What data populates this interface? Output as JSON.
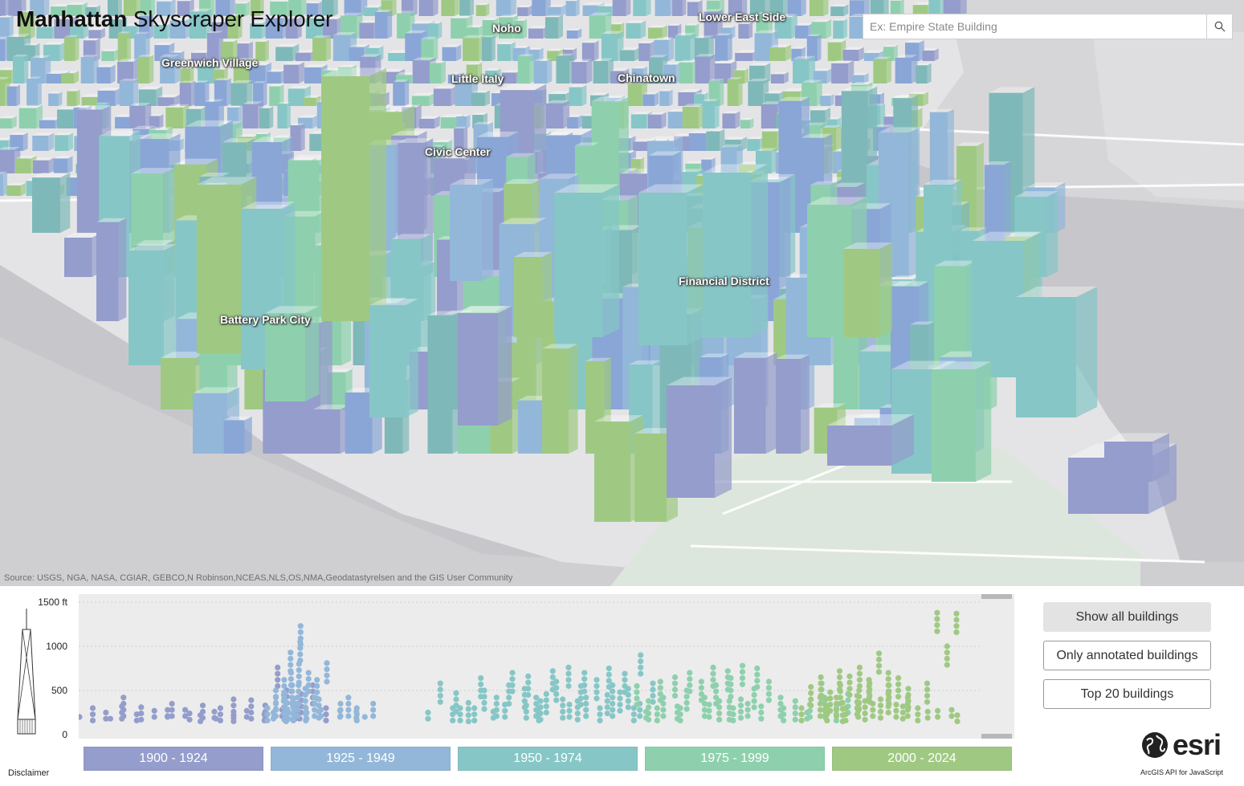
{
  "app": {
    "title_bold": "Manhattan",
    "title_light": " Skyscraper Explorer"
  },
  "search": {
    "placeholder": "Ex: Empire State Building"
  },
  "map": {
    "labels": [
      {
        "id": "noho",
        "text": "Noho"
      },
      {
        "id": "lower-east-side",
        "text": "Lower East Side"
      },
      {
        "id": "greenwich-village",
        "text": "Greenwich Village"
      },
      {
        "id": "little-italy",
        "text": "Little Italy"
      },
      {
        "id": "chinatown",
        "text": "Chinatown"
      },
      {
        "id": "civic-center",
        "text": "Civic Center"
      },
      {
        "id": "financial-district",
        "text": "Financial District"
      },
      {
        "id": "battery-park-city",
        "text": "Battery Park City"
      }
    ],
    "attribution": "Source: USGS, NGA, NASA, CGIAR, GEBCO,N Robinson,NCEAS,NLS,OS,NMA,Geodatastyrelsen and the GIS User Community"
  },
  "chart": {
    "y_axis_labels": [
      "1500 ft",
      "1000",
      "500",
      "0"
    ]
  },
  "chart_data": {
    "type": "scatter",
    "xlabel": "",
    "ylabel": "",
    "ylim": [
      0,
      1500
    ],
    "y_ticks": [
      0,
      500,
      1000,
      1500
    ],
    "y_unit": "ft",
    "series": [
      {
        "name": "1900 - 1924",
        "color": "#949dcb",
        "x_range": [
          1900,
          1924
        ],
        "points": [
          [
            1900,
            200
          ],
          [
            1901,
            300
          ],
          [
            1902,
            250
          ],
          [
            1903,
            180
          ],
          [
            1904,
            420
          ],
          [
            1905,
            230
          ],
          [
            1906,
            310
          ],
          [
            1907,
            270
          ],
          [
            1908,
            200
          ],
          [
            1909,
            350
          ],
          [
            1910,
            280
          ],
          [
            1911,
            240
          ],
          [
            1912,
            330
          ],
          [
            1913,
            180
          ],
          [
            1914,
            300
          ],
          [
            1915,
            220
          ],
          [
            1916,
            270
          ],
          [
            1917,
            390
          ],
          [
            1918,
            230
          ],
          [
            1919,
            760
          ],
          [
            1920,
            280
          ],
          [
            1921,
            320
          ],
          [
            1922,
            250
          ],
          [
            1923,
            560
          ],
          [
            1924,
            300
          ],
          [
            1912,
            220
          ],
          [
            1915,
            400
          ],
          [
            1920,
            500
          ],
          [
            1922,
            460
          ],
          [
            1913,
            260
          ],
          [
            1908,
            280
          ],
          [
            1904,
            320
          ],
          [
            1918,
            330
          ]
        ]
      },
      {
        "name": "1925 - 1949",
        "color": "#93b7d9",
        "x_range": [
          1925,
          1949
        ],
        "points": [
          [
            1925,
            300
          ],
          [
            1926,
            500
          ],
          [
            1927,
            380
          ],
          [
            1928,
            450
          ],
          [
            1929,
            560
          ],
          [
            1930,
            1230
          ],
          [
            1931,
            1050
          ],
          [
            1932,
            700
          ],
          [
            1933,
            620
          ],
          [
            1929,
            930
          ],
          [
            1930,
            800
          ],
          [
            1931,
            560
          ],
          [
            1928,
            360
          ],
          [
            1927,
            620
          ],
          [
            1926,
            250
          ],
          [
            1930,
            420
          ],
          [
            1931,
            300
          ],
          [
            1932,
            520
          ],
          [
            1929,
            380
          ],
          [
            1928,
            700
          ],
          [
            1936,
            810
          ],
          [
            1938,
            350
          ],
          [
            1939,
            270
          ],
          [
            1940,
            420
          ],
          [
            1941,
            300
          ],
          [
            1942,
            260
          ],
          [
            1943,
            200
          ],
          [
            1944,
            350
          ],
          [
            1935,
            280
          ],
          [
            1934,
            400
          ],
          [
            1931,
            250
          ],
          [
            1932,
            250
          ],
          [
            1933,
            420
          ],
          [
            1930,
            300
          ],
          [
            1926,
            420
          ],
          [
            1925,
            200
          ],
          [
            1929,
            250
          ]
        ]
      },
      {
        "name": "1950 - 1974",
        "color": "#87c6c6",
        "x_range": [
          1950,
          1974
        ],
        "points": [
          [
            1950,
            250
          ],
          [
            1951,
            580
          ],
          [
            1952,
            300
          ],
          [
            1953,
            470
          ],
          [
            1954,
            360
          ],
          [
            1955,
            640
          ],
          [
            1956,
            500
          ],
          [
            1957,
            420
          ],
          [
            1958,
            560
          ],
          [
            1959,
            700
          ],
          [
            1960,
            520
          ],
          [
            1961,
            660
          ],
          [
            1962,
            380
          ],
          [
            1963,
            720
          ],
          [
            1964,
            600
          ],
          [
            1965,
            760
          ],
          [
            1966,
            550
          ],
          [
            1967,
            700
          ],
          [
            1968,
            620
          ],
          [
            1969,
            750
          ],
          [
            1970,
            560
          ],
          [
            1971,
            690
          ],
          [
            1972,
            520
          ],
          [
            1973,
            900
          ],
          [
            1974,
            580
          ],
          [
            1955,
            300
          ],
          [
            1958,
            340
          ],
          [
            1960,
            330
          ],
          [
            1962,
            300
          ],
          [
            1965,
            340
          ],
          [
            1968,
            300
          ],
          [
            1970,
            280
          ],
          [
            1972,
            300
          ],
          [
            1963,
            460
          ],
          [
            1967,
            420
          ],
          [
            1969,
            450
          ],
          [
            1971,
            480
          ],
          [
            1966,
            380
          ],
          [
            1964,
            400
          ],
          [
            1957,
            260
          ],
          [
            1953,
            300
          ],
          [
            1961,
            420
          ],
          [
            1973,
            350
          ]
        ]
      },
      {
        "name": "1975 - 1999",
        "color": "#8ed0ad",
        "x_range": [
          1975,
          1999
        ],
        "points": [
          [
            1975,
            550
          ],
          [
            1976,
            380
          ],
          [
            1977,
            600
          ],
          [
            1978,
            420
          ],
          [
            1979,
            650
          ],
          [
            1980,
            500
          ],
          [
            1981,
            700
          ],
          [
            1982,
            600
          ],
          [
            1983,
            760
          ],
          [
            1984,
            560
          ],
          [
            1985,
            720
          ],
          [
            1986,
            640
          ],
          [
            1987,
            780
          ],
          [
            1988,
            520
          ],
          [
            1989,
            750
          ],
          [
            1990,
            600
          ],
          [
            1991,
            420
          ],
          [
            1992,
            300
          ],
          [
            1993,
            380
          ],
          [
            1994,
            250
          ],
          [
            1995,
            340
          ],
          [
            1996,
            580
          ],
          [
            1997,
            420
          ],
          [
            1998,
            300
          ],
          [
            1999,
            460
          ],
          [
            1980,
            300
          ],
          [
            1983,
            340
          ],
          [
            1985,
            380
          ],
          [
            1987,
            400
          ],
          [
            1989,
            320
          ],
          [
            1982,
            420
          ],
          [
            1986,
            300
          ],
          [
            1984,
            380
          ],
          [
            1988,
            350
          ],
          [
            1977,
            300
          ],
          [
            1979,
            320
          ],
          [
            1976,
            260
          ]
        ]
      },
      {
        "name": "2000 - 2024",
        "color": "#9fc983",
        "x_range": [
          2000,
          2024
        ],
        "points": [
          [
            2000,
            300
          ],
          [
            2001,
            540
          ],
          [
            2002,
            420
          ],
          [
            2003,
            650
          ],
          [
            2004,
            480
          ],
          [
            2005,
            720
          ],
          [
            2006,
            560
          ],
          [
            2007,
            660
          ],
          [
            2008,
            500
          ],
          [
            2009,
            760
          ],
          [
            2010,
            620
          ],
          [
            2011,
            580
          ],
          [
            2012,
            920
          ],
          [
            2013,
            700
          ],
          [
            2014,
            560
          ],
          [
            2015,
            640
          ],
          [
            2016,
            420
          ],
          [
            2017,
            520
          ],
          [
            2018,
            300
          ],
          [
            2019,
            580
          ],
          [
            2020,
            260
          ],
          [
            2021,
            1380
          ],
          [
            2022,
            270
          ],
          [
            2023,
            1000
          ],
          [
            2024,
            1370
          ],
          [
            2004,
            300
          ],
          [
            2006,
            360
          ],
          [
            2008,
            340
          ],
          [
            2010,
            380
          ],
          [
            2012,
            400
          ],
          [
            2014,
            340
          ],
          [
            2016,
            320
          ],
          [
            2003,
            400
          ],
          [
            2009,
            440
          ],
          [
            2011,
            350
          ],
          [
            2013,
            460
          ],
          [
            2007,
            300
          ],
          [
            2005,
            420
          ],
          [
            2024,
            220
          ],
          [
            2024,
            280
          ]
        ]
      }
    ]
  },
  "era_buttons": [
    {
      "label": "1900 - 1924",
      "color": "#949dcb"
    },
    {
      "label": "1925 - 1949",
      "color": "#93b7d9"
    },
    {
      "label": "1950 - 1974",
      "color": "#87c6c6"
    },
    {
      "label": "1975 - 1999",
      "color": "#8ed0ad"
    },
    {
      "label": "2000 - 2024",
      "color": "#9fc983"
    }
  ],
  "filters": {
    "show_all": "Show all buildings",
    "only_annotated": "Only annotated buildings",
    "top_20": "Top 20 buildings"
  },
  "footer": {
    "disclaimer": "Disclaimer",
    "esri_word": "esri",
    "api_text": "ArcGIS API for JavaScript"
  }
}
